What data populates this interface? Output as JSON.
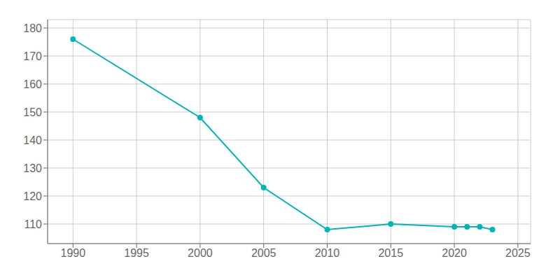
{
  "chart_data": {
    "type": "line",
    "x": [
      1990,
      2000,
      2005,
      2010,
      2015,
      2020,
      2021,
      2022,
      2023
    ],
    "values": [
      176,
      148,
      123,
      108,
      110,
      109,
      109,
      109,
      108
    ],
    "color": "#00b5b5",
    "marker": "circle",
    "xlim": [
      1988,
      2026
    ],
    "ylim": [
      103,
      183
    ],
    "xticks": [
      1990,
      1995,
      2000,
      2005,
      2010,
      2015,
      2020,
      2025
    ],
    "yticks": [
      110,
      120,
      130,
      140,
      150,
      160,
      170,
      180
    ],
    "grid": true
  }
}
